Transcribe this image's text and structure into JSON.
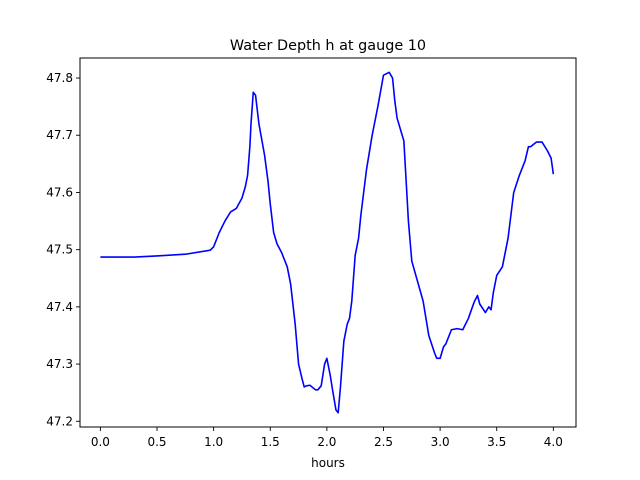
{
  "chart_data": {
    "type": "line",
    "title": "Water Depth h at gauge 10",
    "xlabel": "hours",
    "ylabel": "",
    "xlim": [
      -0.18,
      4.2
    ],
    "ylim": [
      47.19,
      47.835
    ],
    "xticks": [
      0.0,
      0.5,
      1.0,
      1.5,
      2.0,
      2.5,
      3.0,
      3.5,
      4.0
    ],
    "xtick_labels": [
      "0.0",
      "0.5",
      "1.0",
      "1.5",
      "2.0",
      "2.5",
      "3.0",
      "3.5",
      "4.0"
    ],
    "yticks": [
      47.2,
      47.3,
      47.4,
      47.5,
      47.6,
      47.7,
      47.8
    ],
    "ytick_labels": [
      "47.2",
      "47.3",
      "47.4",
      "47.5",
      "47.6",
      "47.7",
      "47.8"
    ],
    "grid": false,
    "series": [
      {
        "color": "#0000ff",
        "x": [
          0.0,
          0.3,
          0.5,
          0.75,
          0.97,
          1.0,
          1.05,
          1.1,
          1.15,
          1.2,
          1.25,
          1.28,
          1.3,
          1.32,
          1.33,
          1.35,
          1.37,
          1.4,
          1.45,
          1.48,
          1.5,
          1.53,
          1.56,
          1.6,
          1.65,
          1.68,
          1.72,
          1.75,
          1.78,
          1.8,
          1.82,
          1.85,
          1.9,
          1.92,
          1.95,
          1.98,
          2.0,
          2.03,
          2.05,
          2.08,
          2.1,
          2.12,
          2.15,
          2.18,
          2.2,
          2.22,
          2.25,
          2.28,
          2.3,
          2.35,
          2.4,
          2.45,
          2.5,
          2.55,
          2.58,
          2.6,
          2.62,
          2.65,
          2.68,
          2.7,
          2.72,
          2.75,
          2.8,
          2.85,
          2.9,
          2.95,
          2.97,
          3.0,
          3.03,
          3.05,
          3.1,
          3.15,
          3.2,
          3.25,
          3.3,
          3.33,
          3.35,
          3.4,
          3.43,
          3.45,
          3.47,
          3.5,
          3.55,
          3.6,
          3.65,
          3.7,
          3.75,
          3.78,
          3.8,
          3.85,
          3.9,
          3.95,
          3.98,
          4.0
        ],
        "y": [
          47.487,
          47.487,
          47.489,
          47.492,
          47.499,
          47.505,
          47.53,
          47.55,
          47.566,
          47.572,
          47.59,
          47.61,
          47.63,
          47.68,
          47.72,
          47.775,
          47.77,
          47.72,
          47.665,
          47.62,
          47.58,
          47.53,
          47.51,
          47.495,
          47.47,
          47.44,
          47.37,
          47.3,
          47.275,
          47.26,
          47.262,
          47.263,
          47.255,
          47.255,
          47.262,
          47.3,
          47.31,
          47.28,
          47.255,
          47.22,
          47.215,
          47.26,
          47.34,
          47.37,
          47.38,
          47.41,
          47.49,
          47.52,
          47.56,
          47.64,
          47.7,
          47.75,
          47.805,
          47.81,
          47.8,
          47.76,
          47.73,
          47.71,
          47.69,
          47.62,
          47.55,
          47.48,
          47.445,
          47.41,
          47.35,
          47.32,
          47.31,
          47.31,
          47.33,
          47.335,
          47.36,
          47.362,
          47.36,
          47.38,
          47.408,
          47.42,
          47.405,
          47.39,
          47.4,
          47.395,
          47.425,
          47.455,
          47.47,
          47.52,
          47.6,
          47.63,
          47.655,
          47.68,
          47.68,
          47.688,
          47.688,
          47.672,
          47.66,
          47.632
        ]
      }
    ]
  }
}
